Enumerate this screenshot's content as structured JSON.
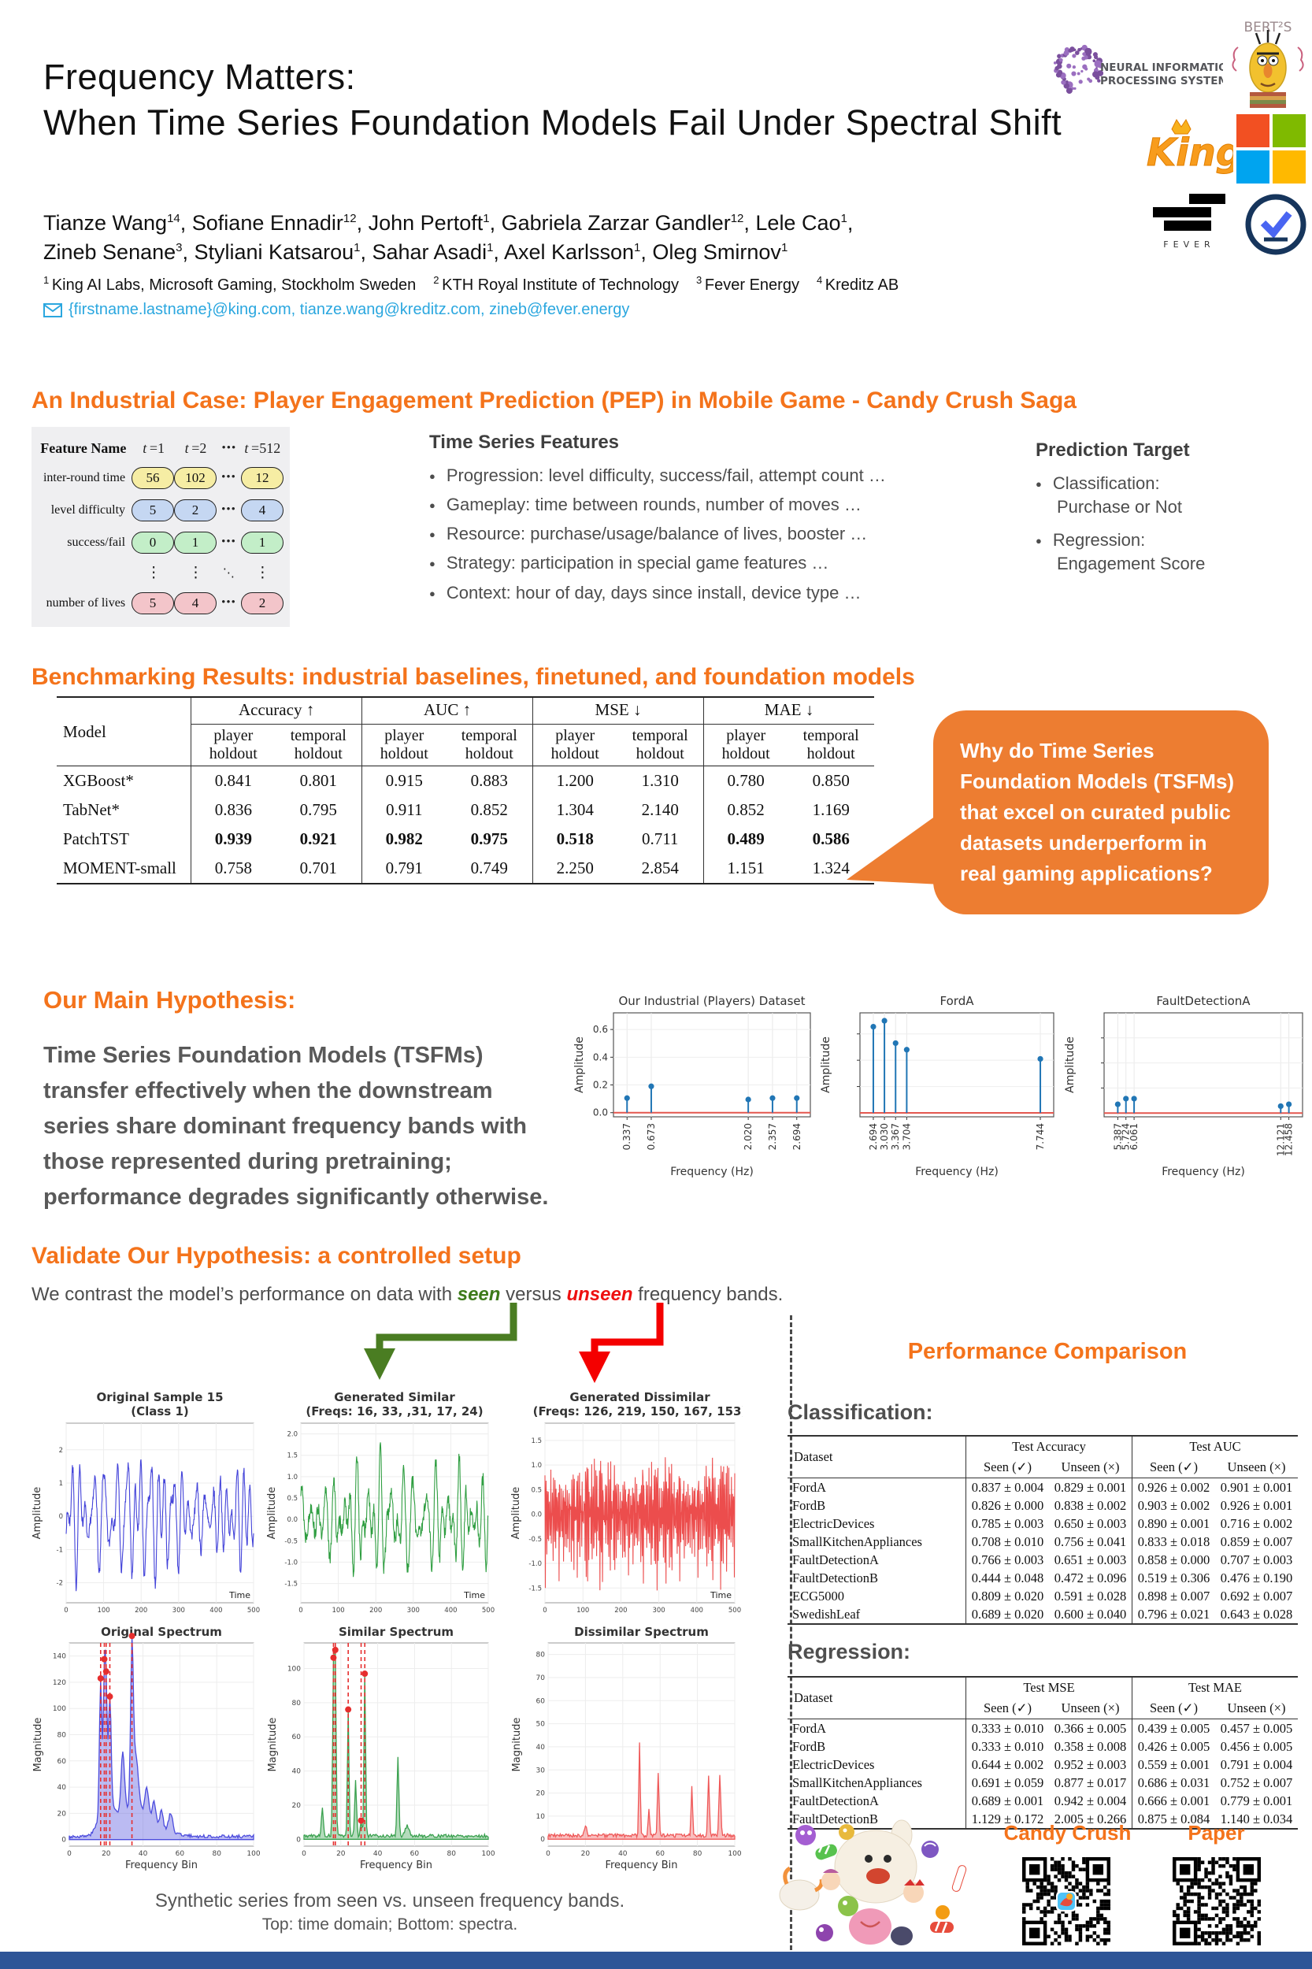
{
  "poster": {
    "title_line1": "Frequency Matters:",
    "title_line2": "When Time Series Foundation Models Fail Under Spectral Shift",
    "authors_line1": [
      {
        "name": "Tianze Wang",
        "sup": "14"
      },
      {
        "name": "Sofiane Ennadir",
        "sup": "12"
      },
      {
        "name": "John Pertoft",
        "sup": "1"
      },
      {
        "name": "Gabriela Zarzar Gandler",
        "sup": "12"
      },
      {
        "name": "Lele Cao",
        "sup": "1"
      }
    ],
    "authors_line1_suffix": ",",
    "authors_line2": [
      {
        "name": "Zineb Senane",
        "sup": "3"
      },
      {
        "name": "Styliani Katsarou",
        "sup": "1"
      },
      {
        "name": "Sahar Asadi",
        "sup": "1"
      },
      {
        "name": "Axel Karlsson",
        "sup": "1"
      },
      {
        "name": "Oleg Smirnov",
        "sup": "1"
      }
    ],
    "authors_line2_suffix": "",
    "affiliations": [
      {
        "sup": "1",
        "text": "King AI Labs, Microsoft Gaming, Stockholm Sweden"
      },
      {
        "sup": "2",
        "text": "KTH Royal Institute of Technology"
      },
      {
        "sup": "3",
        "text": "Fever Energy"
      },
      {
        "sup": "4",
        "text": "Kreditz AB"
      }
    ],
    "emails": "{firstname.lastname}@king.com, tianze.wang@kreditz.com, zineb@fever.energy",
    "logos": {
      "neurips_line1": "NEURAL INFORMATION",
      "neurips_line2": "PROCESSING SYSTEMS",
      "bert": "BERT²S",
      "king": "King",
      "fever": "FEVER"
    }
  },
  "industrial": {
    "heading": "An Industrial Case: Player Engagement Prediction (PEP) in Mobile Game - Candy Crush Saga",
    "feature_table": {
      "headers": [
        "Feature Name",
        "t =1",
        "t =2",
        "•••",
        "t =512"
      ],
      "dots_row": [
        "⋮",
        "⋮",
        "⋱",
        "⋮"
      ],
      "rows": [
        {
          "label": "inter-round time",
          "values": [
            "56",
            "102",
            "12"
          ],
          "color": "#f6eda4"
        },
        {
          "label": "level difficulty",
          "values": [
            "5",
            "2",
            "4"
          ],
          "color": "#c5d7f2"
        },
        {
          "label": "success/fail",
          "values": [
            "0",
            "1",
            "1"
          ],
          "color": "#c3eec8"
        },
        {
          "label": "number of lives",
          "values": [
            "5",
            "4",
            "2"
          ],
          "color": "#f3c5ca"
        }
      ]
    },
    "features_heading": "Time Series Features",
    "features": [
      "Progression: level difficulty, success/fail, attempt count …",
      "Gameplay: time between rounds, number of moves …",
      "Resource: purchase/usage/balance of lives, booster …",
      "Strategy: participation in special game features …",
      "Context: hour of day, days since install, device type …"
    ],
    "target_heading": "Prediction Target",
    "targets": [
      {
        "main": "Classification:",
        "sub": "Purchase or Not"
      },
      {
        "main": "Regression:",
        "sub": "Engagement Score"
      }
    ]
  },
  "benchmark": {
    "heading": "Benchmarking Results: industrial baselines, finetuned, and foundation models",
    "model_col": "Model",
    "groups": [
      "Accuracy ↑",
      "AUC ↑",
      "MSE ↓",
      "MAE ↓"
    ],
    "subcols": [
      "player holdout",
      "temporal holdout"
    ],
    "rows": [
      {
        "label": "XGBoost*",
        "values": [
          "0.841",
          "0.801",
          "0.915",
          "0.883",
          "1.200",
          "1.310",
          "0.780",
          "0.850"
        ],
        "bold": []
      },
      {
        "label": "TabNet*",
        "values": [
          "0.836",
          "0.795",
          "0.911",
          "0.852",
          "1.304",
          "2.140",
          "0.852",
          "1.169"
        ],
        "bold": []
      },
      {
        "label": "PatchTST",
        "values": [
          "0.939",
          "0.921",
          "0.982",
          "0.975",
          "0.518",
          "0.711",
          "0.489",
          "0.586"
        ],
        "bold": [
          0,
          1,
          2,
          3,
          4,
          6,
          7
        ]
      },
      {
        "label": "MOMENT-small",
        "values": [
          "0.758",
          "0.701",
          "0.791",
          "0.749",
          "2.250",
          "2.854",
          "1.151",
          "1.324"
        ],
        "bold": []
      }
    ],
    "callout": "Why do Time Series Foundation Models (TSFMs) that excel on curated public datasets underperform in real gaming applications?"
  },
  "hypothesis": {
    "heading": "Our Main Hypothesis:",
    "text": "Time Series Foundation Models (TSFMs) transfer effectively when the downstream series share dominant frequency bands with those represented during pretraining; performance degrades significantly otherwise."
  },
  "validate": {
    "heading": "Validate Our Hypothesis: a controlled setup",
    "sentence": [
      {
        "text": "We contrast the model’s performance on data with "
      },
      {
        "text": "seen",
        "style": "seen"
      },
      {
        "text": " versus "
      },
      {
        "text": "unseen",
        "style": "unseen"
      },
      {
        "text": " frequency bands."
      }
    ]
  },
  "performance": {
    "heading": "Performance Comparison",
    "classification_heading": "Classification:",
    "regression_heading": "Regression:",
    "classification": {
      "model_col": "Dataset",
      "groups": [
        "Test Accuracy",
        "Test AUC"
      ],
      "subcols": [
        "Seen (✓)",
        "Unseen (×)"
      ],
      "rows": [
        {
          "label": "FordA",
          "values": [
            "0.837 ± 0.004",
            "0.829 ± 0.001",
            "0.926 ± 0.002",
            "0.901 ± 0.001"
          ],
          "bold": []
        },
        {
          "label": "FordB",
          "values": [
            "0.826 ± 0.000",
            "0.838 ± 0.002",
            "0.903 ± 0.002",
            "0.926 ± 0.001"
          ],
          "bold": []
        },
        {
          "label": "ElectricDevices",
          "values": [
            "0.785 ± 0.003",
            "0.650 ± 0.003",
            "0.890 ± 0.001",
            "0.716 ± 0.002"
          ],
          "bold": []
        },
        {
          "label": "SmallKitchenAppliances",
          "values": [
            "0.708 ± 0.010",
            "0.756 ± 0.041",
            "0.833 ± 0.018",
            "0.859 ± 0.007"
          ],
          "bold": []
        },
        {
          "label": "FaultDetectionA",
          "values": [
            "0.766 ± 0.003",
            "0.651 ± 0.003",
            "0.858 ± 0.000",
            "0.707 ± 0.003"
          ],
          "bold": []
        },
        {
          "label": "FaultDetectionB",
          "values": [
            "0.444 ± 0.048",
            "0.472 ± 0.096",
            "0.519 ± 0.306",
            "0.476 ± 0.190"
          ],
          "bold": []
        },
        {
          "label": "ECG5000",
          "values": [
            "0.809 ± 0.020",
            "0.591 ± 0.028",
            "0.898 ± 0.007",
            "0.692 ± 0.007"
          ],
          "bold": []
        },
        {
          "label": "SwedishLeaf",
          "values": [
            "0.689 ± 0.020",
            "0.600 ± 0.040",
            "0.796 ± 0.021",
            "0.643 ± 0.028"
          ],
          "bold": []
        }
      ]
    },
    "regression": {
      "model_col": "Dataset",
      "groups": [
        "Test MSE",
        "Test MAE"
      ],
      "subcols": [
        "Seen (✓)",
        "Unseen (×)"
      ],
      "rows": [
        {
          "label": "FordA",
          "values": [
            "0.333 ± 0.010",
            "0.366 ± 0.005",
            "0.439 ± 0.005",
            "0.457 ± 0.005"
          ],
          "bold": []
        },
        {
          "label": "FordB",
          "values": [
            "0.333 ± 0.010",
            "0.358 ± 0.008",
            "0.426 ± 0.005",
            "0.456 ± 0.005"
          ],
          "bold": []
        },
        {
          "label": "ElectricDevices",
          "values": [
            "0.644 ± 0.002",
            "0.952 ± 0.003",
            "0.559 ± 0.001",
            "0.791 ± 0.004"
          ],
          "bold": []
        },
        {
          "label": "SmallKitchenAppliances",
          "values": [
            "0.691 ± 0.059",
            "0.877 ± 0.017",
            "0.686 ± 0.031",
            "0.752 ± 0.007"
          ],
          "bold": []
        },
        {
          "label": "FaultDetectionA",
          "values": [
            "0.689 ± 0.001",
            "0.942 ± 0.004",
            "0.666 ± 0.001",
            "0.779 ± 0.001"
          ],
          "bold": []
        },
        {
          "label": "FaultDetectionB",
          "values": [
            "1.129 ± 0.172",
            "2.005 ± 0.266",
            "0.875 ± 0.084",
            "1.140 ± 0.034"
          ],
          "bold": []
        }
      ]
    }
  },
  "footer": {
    "caption_line1": "Synthetic series from seen vs. unseen frequency bands.",
    "caption_line2": "Top: time domain; Bottom: spectra.",
    "candy_label": "Candy Crush",
    "paper_label": "Paper"
  },
  "colors": {
    "accent_orange": "#F4731B",
    "bubble_orange": "#ED7D31",
    "email_blue": "#2BA7DF",
    "footer_blue": "#2e5597",
    "stem_blue": "#2176b5",
    "baseline_red": "#e4574f"
  },
  "chart_data": [
    {
      "id": "fp1",
      "type": "stem",
      "title": "Our Industrial (Players) Dataset",
      "xlabel": "Frequency (Hz)",
      "ylabel": "Amplitude",
      "x": [
        0.337,
        0.673,
        2.02,
        2.357,
        2.694
      ],
      "y": [
        0.105,
        0.19,
        0.095,
        0.105,
        0.105
      ],
      "xtick_labels": [
        "0.337",
        "0.673",
        "2.020",
        "2.357",
        "2.694"
      ],
      "yticks": [
        0.0,
        0.2,
        0.4,
        0.6
      ],
      "ytick_labels": [
        "0.0",
        "0.2",
        "0.4",
        "0.6"
      ],
      "ylim": [
        -0.03,
        0.72
      ]
    },
    {
      "id": "fp2",
      "type": "stem",
      "title": "FordA",
      "xlabel": "Frequency (Hz)",
      "ylabel": "Amplitude",
      "x": [
        2.694,
        3.03,
        3.367,
        3.704,
        7.744
      ],
      "y": [
        0.655,
        0.7,
        0.53,
        0.48,
        0.41
      ],
      "xtick_labels": [
        "2.694",
        "3.030",
        "3.367",
        "3.704",
        "7.744"
      ],
      "yticks": [
        0.2,
        0.4,
        0.6
      ],
      "ytick_labels": [
        "",
        "",
        ""
      ],
      "ylim": [
        -0.03,
        0.76
      ]
    },
    {
      "id": "fp3",
      "type": "stem",
      "title": "FaultDetectionA",
      "xlabel": "Frequency (Hz)",
      "ylabel": "Amplitude",
      "x": [
        5.387,
        5.724,
        6.061,
        12.121,
        12.458
      ],
      "y": [
        0.07,
        0.115,
        0.115,
        0.055,
        0.07
      ],
      "xtick_labels": [
        "5.387",
        "5.724",
        "6.061",
        "12.121",
        "12.458"
      ],
      "yticks": [
        0.2,
        0.4,
        0.6
      ],
      "ytick_labels": [
        "",
        "",
        ""
      ],
      "ylim": [
        -0.03,
        0.8
      ]
    },
    {
      "id": "tp1",
      "type": "line",
      "title_line1": "Original Sample 15",
      "title_line2": "(Class 1)",
      "color": "#4343d9",
      "freqs": [
        16,
        33,
        31,
        17,
        24
      ],
      "seed": 7,
      "amp": 2.25,
      "noise": 0.25,
      "n": 512,
      "ylabel": "Amplitude",
      "corner_label": "Time",
      "yticks": [
        -2,
        -1,
        0,
        1,
        2
      ],
      "ylim": [
        -2.6,
        2.8
      ],
      "xticks": [
        0,
        100,
        200,
        300,
        400,
        500
      ]
    },
    {
      "id": "tp2",
      "type": "line",
      "title_line1": "Generated Similar",
      "title_line2": "(Freqs: 16, 33, ,31, 17, 24)",
      "color": "#2f9e41",
      "freqs": [
        16,
        33,
        31,
        17,
        24
      ],
      "seed": 13,
      "amp": 1.8,
      "noise": 0.35,
      "n": 512,
      "ylabel": "Amplitude",
      "corner_label": "Time",
      "yticks": [
        2.0,
        1.5,
        1.0,
        0.5,
        0.0,
        -0.5,
        -1.0,
        -1.5
      ],
      "ylim": [
        -1.95,
        2.25
      ],
      "xticks": [
        0,
        100,
        200,
        300,
        400,
        500
      ]
    },
    {
      "id": "tp3",
      "type": "line",
      "title_line1": "Generated Dissimilar",
      "title_line2": "(Freqs: 126, 219, 150, 167, 153)",
      "color": "#ec4d4d",
      "freqs": [
        126,
        219,
        150,
        167,
        153
      ],
      "seed": 21,
      "amp": 1.55,
      "noise": 0.2,
      "n": 512,
      "ylabel": "Amplitude",
      "corner_label": "Time",
      "yticks": [
        1.5,
        1.0,
        0.5,
        0.0,
        -0.5,
        -1.0,
        -1.5
      ],
      "ylim": [
        -1.8,
        1.85
      ],
      "xticks": [
        0,
        100,
        200,
        300,
        400,
        500
      ]
    },
    {
      "id": "sp1",
      "type": "area",
      "title": "Original Spectrum",
      "color": "#4c4cdd",
      "xlabel": "Frequency Bin",
      "ylabel": "Magnitude",
      "seed": 3,
      "noise": 3,
      "peaks": [
        [
          17,
          100,
          0.9
        ],
        [
          19,
          90,
          0.8
        ],
        [
          20,
          75,
          0.8
        ],
        [
          22,
          78,
          1.0
        ],
        [
          29,
          45,
          1.3
        ],
        [
          34,
          115,
          1.0
        ],
        [
          36,
          40,
          2.0
        ],
        [
          42,
          22,
          1.5
        ],
        [
          46,
          16,
          1.3
        ],
        [
          50,
          13,
          1.2
        ],
        [
          55,
          14,
          1.5
        ],
        [
          20,
          28,
          5
        ],
        [
          33,
          20,
          9
        ],
        [
          45,
          8,
          12
        ]
      ],
      "marked": [
        17,
        19,
        20,
        22,
        34
      ],
      "yticks": [
        0,
        20,
        40,
        60,
        80,
        100,
        120,
        140
      ],
      "ylim": [
        -5,
        150
      ],
      "xticks": [
        0,
        20,
        40,
        60,
        80,
        100
      ]
    },
    {
      "id": "sp2",
      "type": "area",
      "title": "Similar Spectrum",
      "color": "#3aa14f",
      "xlabel": "Frequency Bin",
      "ylabel": "Magnitude",
      "seed": 5,
      "noise": 2.5,
      "peaks": [
        [
          10,
          17,
          0.7
        ],
        [
          16,
          95,
          0.65
        ],
        [
          17,
          100,
          0.65
        ],
        [
          24,
          74,
          0.6
        ],
        [
          28,
          32,
          0.7
        ],
        [
          31,
          9,
          0.6
        ],
        [
          33,
          95,
          0.6
        ],
        [
          51,
          46,
          0.7
        ],
        [
          56,
          6,
          1.5
        ]
      ],
      "marked": [
        16,
        17,
        24,
        31,
        33
      ],
      "yticks": [
        0,
        20,
        40,
        60,
        80,
        100
      ],
      "ylim": [
        -4,
        115
      ],
      "xticks": [
        0,
        20,
        40,
        60,
        80,
        100
      ]
    },
    {
      "id": "sp3",
      "type": "area",
      "title": "Dissimilar Spectrum",
      "color": "#ef5858",
      "xlabel": "Frequency Bin",
      "ylabel": "Magnitude",
      "seed": 9,
      "noise": 2,
      "peaks": [
        [
          20,
          4,
          0.9
        ],
        [
          49,
          40,
          0.55
        ],
        [
          54,
          12,
          0.6
        ],
        [
          59,
          27,
          0.6
        ],
        [
          77,
          22,
          0.55
        ],
        [
          86,
          26,
          0.6
        ],
        [
          92,
          26,
          0.7
        ]
      ],
      "marked": [],
      "yticks": [
        0,
        10,
        20,
        30,
        40,
        50,
        60,
        70,
        80
      ],
      "ylim": [
        -3,
        85
      ],
      "xticks": [
        0,
        20,
        40,
        60,
        80,
        100
      ]
    }
  ]
}
